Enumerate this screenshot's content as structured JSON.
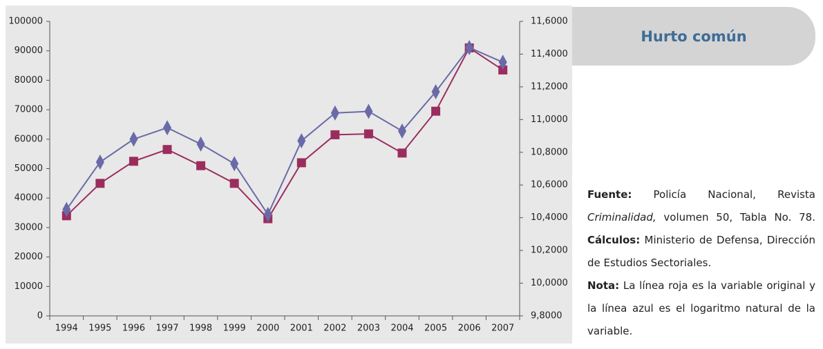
{
  "chart_data": {
    "type": "line",
    "categories": [
      "1994",
      "1995",
      "1996",
      "1997",
      "1998",
      "1999",
      "2000",
      "2001",
      "2002",
      "2003",
      "2004",
      "2005",
      "2006",
      "2007"
    ],
    "series": [
      {
        "color": "#9b2d5e",
        "marker": "square",
        "values": [
          34000,
          45000,
          52500,
          56500,
          51000,
          45000,
          33000,
          52000,
          61500,
          61800,
          55300,
          69500,
          91000,
          83500
        ]
      },
      {
        "color": "#6a6aa8",
        "marker": "diamond",
        "axis": "y2",
        "values": [
          10.45,
          10.74,
          10.88,
          10.95,
          10.85,
          10.73,
          10.42,
          10.87,
          11.04,
          11.05,
          10.93,
          11.17,
          11.44,
          11.35
        ]
      }
    ],
    "ylim": [
      0,
      100000
    ],
    "yticks": [
      0,
      10000,
      20000,
      30000,
      40000,
      50000,
      60000,
      70000,
      80000,
      90000,
      100000
    ],
    "y2lim": [
      9.8,
      11.6
    ],
    "y2ticks": [
      {
        "value": 9.8,
        "label": "9,8000"
      },
      {
        "value": 10.0,
        "label": "10,0000"
      },
      {
        "value": 10.2,
        "label": "10,2000"
      },
      {
        "value": 10.4,
        "label": "10,4000"
      },
      {
        "value": 10.6,
        "label": "10,6000"
      },
      {
        "value": 10.8,
        "label": "10,8000"
      },
      {
        "value": 11.0,
        "label": "11,0000"
      },
      {
        "value": 11.2,
        "label": "11,2000"
      },
      {
        "value": 11.4,
        "label": "11,4000"
      },
      {
        "value": 11.6,
        "label": "11,6000"
      }
    ]
  },
  "panel": {
    "title": "Hurto común",
    "notes": [
      "Fuente:",
      "Policía Nacional, Revista",
      "Criminalidad,",
      "volumen 50, Tabla No. 78.",
      "Cálculos:",
      "Ministerio de Defensa, Dirección de Estudios Sectoriales.",
      "Nota:",
      "La línea roja es la variable original y la línea azul es el logaritmo natural de la variable."
    ]
  }
}
